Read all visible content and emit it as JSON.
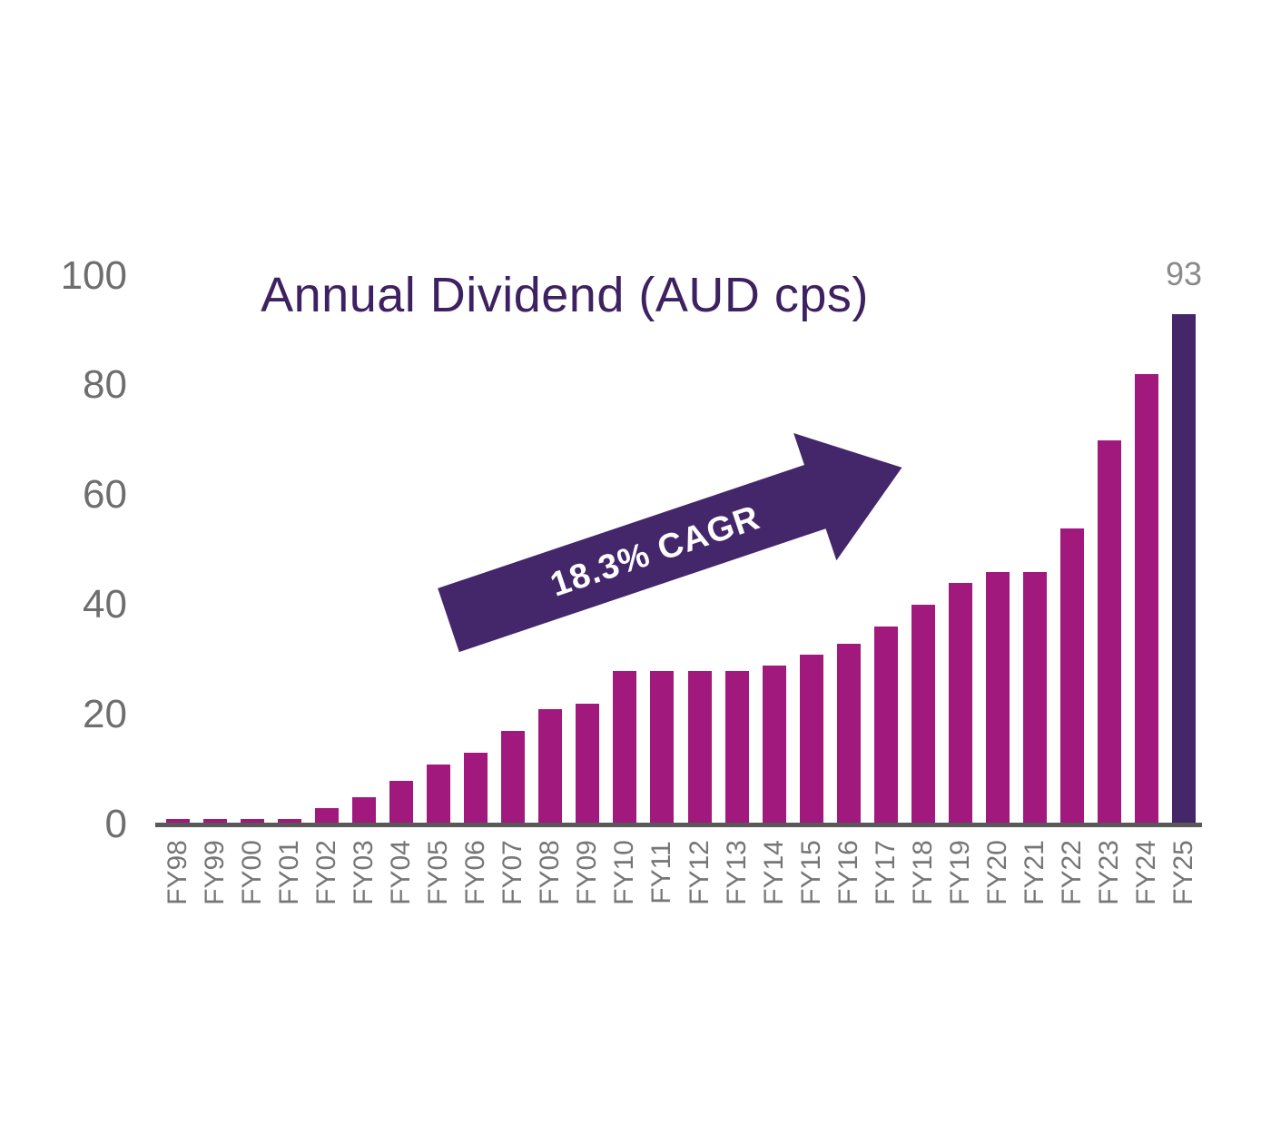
{
  "chart_data": {
    "type": "bar",
    "title": "Annual Dividend (AUD cps)",
    "categories": [
      "FY98",
      "FY99",
      "FY00",
      "FY01",
      "FY02",
      "FY03",
      "FY04",
      "FY05",
      "FY06",
      "FY07",
      "FY08",
      "FY09",
      "FY10",
      "FY11",
      "FY12",
      "FY13",
      "FY14",
      "FY15",
      "FY16",
      "FY17",
      "FY18",
      "FY19",
      "FY20",
      "FY21",
      "FY22",
      "FY23",
      "FY24",
      "FY25"
    ],
    "values": [
      1,
      1,
      1,
      1,
      3,
      5,
      8,
      11,
      13,
      17,
      21,
      22,
      28,
      28,
      28,
      28,
      29,
      31,
      33,
      36,
      40,
      44,
      46,
      46,
      54,
      70,
      82,
      93
    ],
    "xlabel": "",
    "ylabel": "",
    "ylim": [
      0,
      100
    ],
    "y_ticks": [
      0,
      20,
      40,
      60,
      80,
      100
    ],
    "grid": false,
    "legend": false,
    "annotation": {
      "text": "18.3% CAGR"
    },
    "data_label": {
      "category": "FY25",
      "text": "93"
    },
    "colors": {
      "bar": "#a2197d",
      "highlight_bar": "#452769",
      "arrow": "#44266b",
      "title_text": "#3e2160",
      "axis_line": "#595959",
      "y_tick_text": "#6e6e6e",
      "x_tick_text": "#767676",
      "data_label_text": "#8a8a8a",
      "annotation_text": "#ffffff",
      "background": "#ffffff"
    }
  }
}
